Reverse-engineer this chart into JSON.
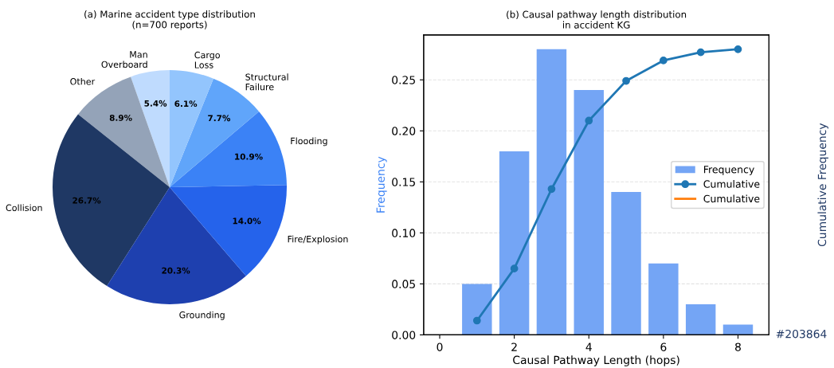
{
  "chart_data": [
    {
      "type": "pie",
      "title": "(a) Marine accident type distribution\n(n=700 reports)",
      "categories": [
        "Man\nOverboard",
        "Other",
        "Collision",
        "Grounding",
        "Fire/Explosion",
        "Flooding",
        "Structural\nFailure",
        "Cargo\nLoss"
      ],
      "values": [
        5.4,
        8.9,
        26.7,
        20.3,
        14.0,
        10.9,
        7.7,
        6.1
      ],
      "value_labels": [
        "5.4%",
        "8.9%",
        "26.7%",
        "20.3%",
        "14.0%",
        "10.9%",
        "7.7%",
        "6.1%"
      ],
      "colors": [
        "#bfdbfe",
        "#94a3b8",
        "#1f3864",
        "#1e40af",
        "#2563eb",
        "#3b82f6",
        "#60a5fa",
        "#93c5fd"
      ]
    },
    {
      "type": "bar",
      "title": "(b) Causal pathway length distribution\nin accident KG",
      "xlabel": "Causal Pathway Length (hops)",
      "ylabel": "Frequency",
      "y2label": "Cumulative Frequency",
      "x": [
        1,
        2,
        3,
        4,
        5,
        6,
        7,
        8
      ],
      "series": [
        {
          "name": "Frequency",
          "type": "bar",
          "color": "#74a5f5",
          "values": [
            0.05,
            0.18,
            0.28,
            0.24,
            0.14,
            0.07,
            0.03,
            0.01
          ]
        },
        {
          "name": "Cumulative",
          "type": "line",
          "color": "#1f77b4",
          "marker": "circle",
          "values": [
            0.014,
            0.065,
            0.143,
            0.21,
            0.249,
            0.269,
            0.277,
            0.28
          ]
        },
        {
          "name": "Cumulative",
          "type": "line",
          "color": "#ff7f0e",
          "values": [
            null,
            null,
            null,
            null,
            null,
            null,
            null,
            null
          ]
        }
      ],
      "xlim": [
        -0.43,
        8.83
      ],
      "xticks": [
        0,
        2,
        4,
        6,
        8
      ],
      "ylim": [
        0,
        0.294
      ],
      "yticks": [
        {
          "value": 0,
          "label": "0.00"
        },
        {
          "value": 0.05,
          "label": "0.05"
        },
        {
          "value": 0.1,
          "label": "0.10"
        },
        {
          "value": 0.15,
          "label": "0.15"
        },
        {
          "value": 0.2,
          "label": "0.20"
        },
        {
          "value": 0.25,
          "label": "0.25"
        }
      ],
      "annotations": [
        "#203864"
      ],
      "grid": "y",
      "legend": "center right"
    }
  ]
}
